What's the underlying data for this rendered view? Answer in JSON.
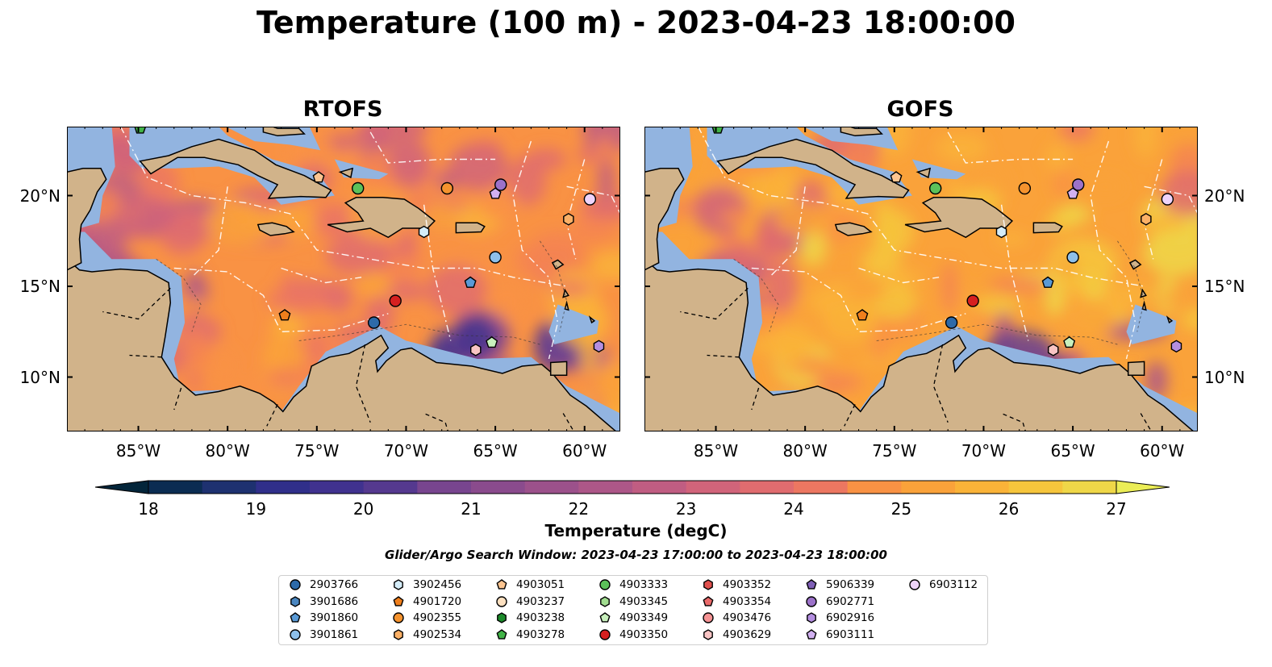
{
  "title": "Temperature (100 m) - 2023-04-23 18:00:00",
  "panels": [
    {
      "title": "RTOFS",
      "model": "rtofs"
    },
    {
      "title": "GOFS",
      "model": "gofs"
    }
  ],
  "map_extent": {
    "lon_min": -89,
    "lon_max": -58,
    "lat_min": 7,
    "lat_max": 23.8
  },
  "lon_ticks": [
    {
      "value": -85,
      "label": "85°W"
    },
    {
      "value": -80,
      "label": "80°W"
    },
    {
      "value": -75,
      "label": "75°W"
    },
    {
      "value": -70,
      "label": "70°W"
    },
    {
      "value": -65,
      "label": "65°W"
    },
    {
      "value": -60,
      "label": "60°W"
    }
  ],
  "lat_ticks": [
    {
      "value": 20,
      "label": "20°N"
    },
    {
      "value": 15,
      "label": "15°N"
    },
    {
      "value": 10,
      "label": "10°N"
    }
  ],
  "colorbar": {
    "label": "Temperature (degC)",
    "min": 18,
    "max": 27,
    "step": 0.5,
    "ticks": [
      "18",
      "19",
      "20",
      "21",
      "22",
      "23",
      "24",
      "25",
      "26",
      "27"
    ],
    "extend": "both",
    "colormap": [
      "#03253a",
      "#0b2c52",
      "#1e3170",
      "#302f8a",
      "#40328f",
      "#55398f",
      "#663f8f",
      "#78458f",
      "#8a4b8d",
      "#9c518b",
      "#ad5788",
      "#c05d82",
      "#d1647a",
      "#e06c6f",
      "#ec7761",
      "#f58452",
      "#f99244",
      "#faa23a",
      "#fab338",
      "#f6c53c",
      "#efd748",
      "#ebed56"
    ]
  },
  "colors": {
    "land": "#d1b38a",
    "shelf": "#92b4e0",
    "coast": "#000000"
  },
  "search_window": "Glider/Argo Search Window: 2023-04-23 17:00:00 to 2023-04-23 18:00:00",
  "floats": [
    {
      "id": "2903766",
      "marker": "circle",
      "color": "#2d6aa9",
      "lon": -71.8,
      "lat": 13.0
    },
    {
      "id": "3901686",
      "marker": "hexagon",
      "color": "#4a86c0",
      "lon": null,
      "lat": null
    },
    {
      "id": "3901860",
      "marker": "pentagon",
      "color": "#5a9ad6",
      "lon": -66.4,
      "lat": 15.2
    },
    {
      "id": "3901861",
      "marker": "circle",
      "color": "#8ec0ea",
      "lon": -65.0,
      "lat": 16.6
    },
    {
      "id": "3902456",
      "marker": "hexagon",
      "color": "#d4ecf8",
      "lon": -69.0,
      "lat": 18.0
    },
    {
      "id": "4901720",
      "marker": "pentagon",
      "color": "#f07f1c",
      "lon": -76.8,
      "lat": 13.4
    },
    {
      "id": "4902355",
      "marker": "circle",
      "color": "#f5932e",
      "lon": -67.7,
      "lat": 20.4
    },
    {
      "id": "4902534",
      "marker": "hexagon",
      "color": "#fbb066",
      "lon": -60.9,
      "lat": 18.7
    },
    {
      "id": "4903051",
      "marker": "pentagon",
      "color": "#fcc591",
      "lon": -74.9,
      "lat": 21.0
    },
    {
      "id": "4903237",
      "marker": "circle",
      "color": "#fde0c0",
      "lon": null,
      "lat": null
    },
    {
      "id": "4903238",
      "marker": "hexagon",
      "color": "#1c8a2a",
      "lon": null,
      "lat": null
    },
    {
      "id": "4903278",
      "marker": "pentagon",
      "color": "#41b347",
      "lon": -84.9,
      "lat": 23.7
    },
    {
      "id": "4903333",
      "marker": "circle",
      "color": "#5cc15a",
      "lon": -72.7,
      "lat": 20.4
    },
    {
      "id": "4903345",
      "marker": "hexagon",
      "color": "#a1dd90",
      "lon": null,
      "lat": null
    },
    {
      "id": "4903349",
      "marker": "pentagon",
      "color": "#c8f0bd",
      "lon": -65.2,
      "lat": 11.9
    },
    {
      "id": "4903350",
      "marker": "circle",
      "color": "#d62020",
      "lon": -70.6,
      "lat": 14.2
    },
    {
      "id": "4903352",
      "marker": "hexagon",
      "color": "#e0504d",
      "lon": null,
      "lat": null
    },
    {
      "id": "4903354",
      "marker": "pentagon",
      "color": "#ea6a6a",
      "lon": null,
      "lat": null
    },
    {
      "id": "4903476",
      "marker": "circle",
      "color": "#f59394",
      "lon": null,
      "lat": null
    },
    {
      "id": "4903629",
      "marker": "hexagon",
      "color": "#f8c4c4",
      "lon": -66.1,
      "lat": 11.5
    },
    {
      "id": "5906339",
      "marker": "pentagon",
      "color": "#7f5fb6",
      "lon": null,
      "lat": null
    },
    {
      "id": "6902771",
      "marker": "circle",
      "color": "#9c72c9",
      "lon": -64.7,
      "lat": 20.6
    },
    {
      "id": "6902916",
      "marker": "hexagon",
      "color": "#b48ee0",
      "lon": -59.2,
      "lat": 11.7
    },
    {
      "id": "6903111",
      "marker": "pentagon",
      "color": "#d1b0f0",
      "lon": -65.0,
      "lat": 20.1
    },
    {
      "id": "6903112",
      "marker": "circle",
      "color": "#eed4fa",
      "lon": -59.7,
      "lat": 19.8
    }
  ]
}
